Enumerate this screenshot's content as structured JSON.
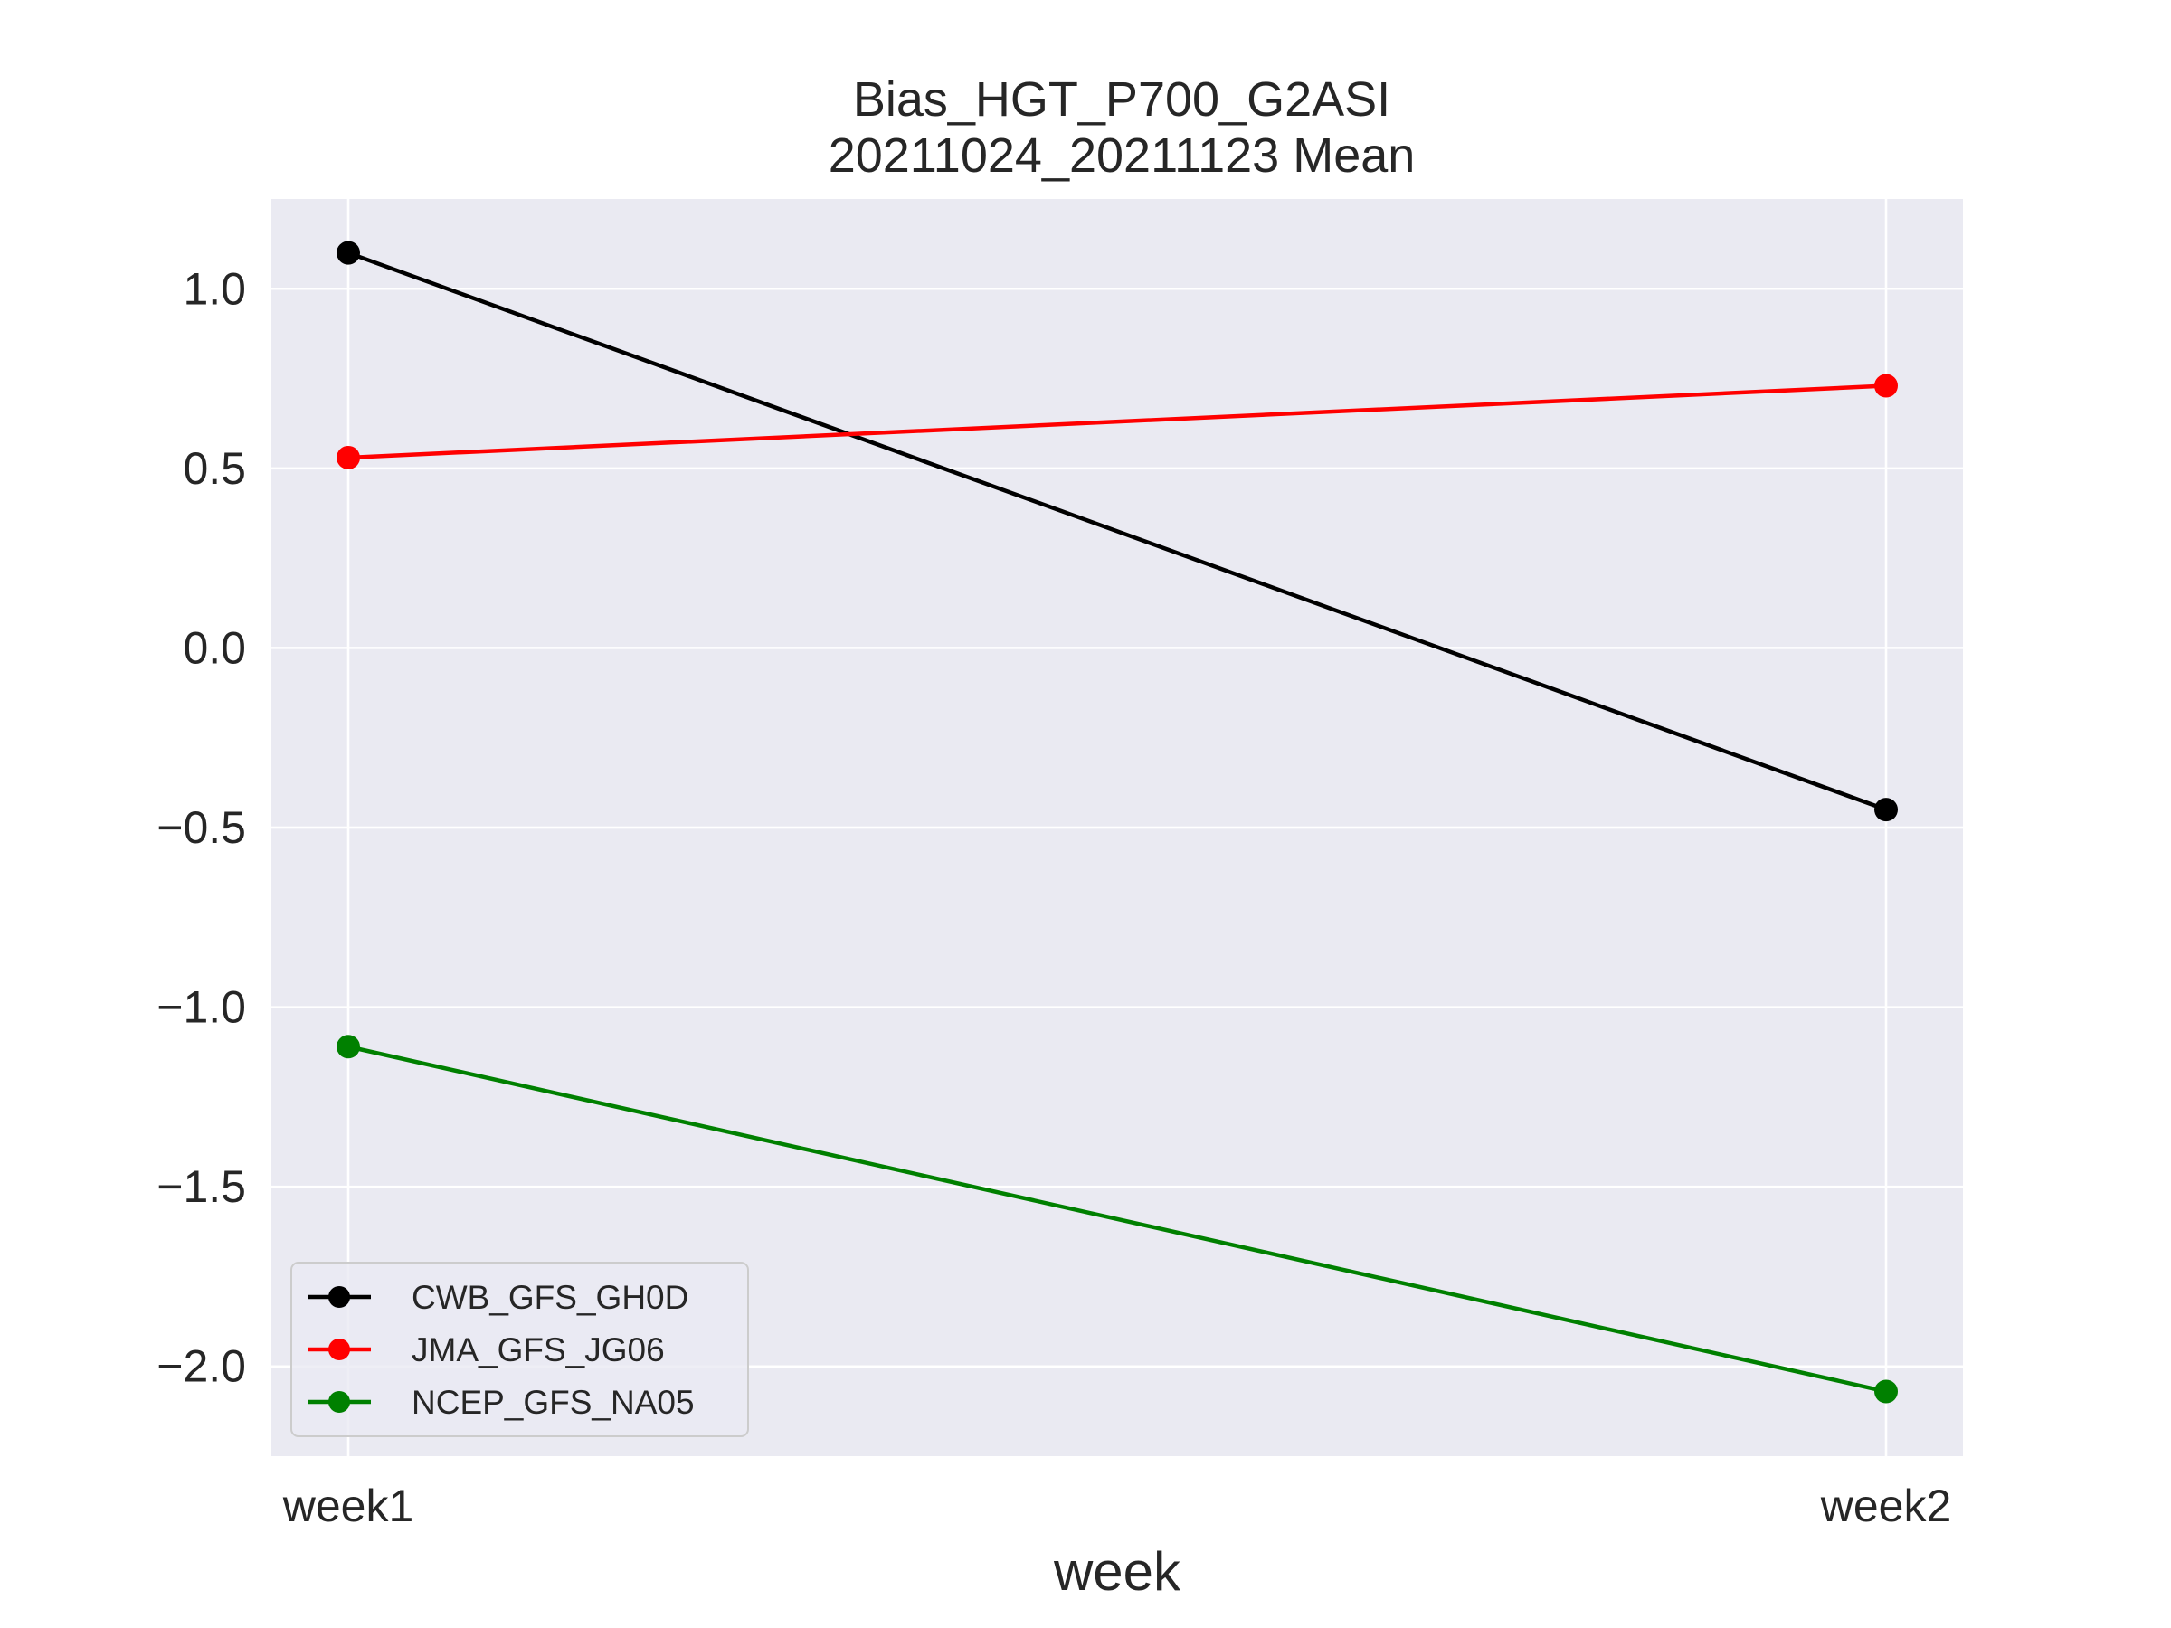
{
  "chart_data": {
    "type": "line",
    "title": "Bias_HGT_P700_G2ASI",
    "subtitle": "20211024_20211123 Mean",
    "xlabel": "week",
    "ylabel": "",
    "categories": [
      "week1",
      "week2"
    ],
    "ylim": [
      -2.25,
      1.25
    ],
    "yticks": [
      1.0,
      0.5,
      0.0,
      -0.5,
      -1.0,
      -1.5,
      -2.0
    ],
    "ytick_labels": [
      "1.0",
      "0.5",
      "0.0",
      "−0.5",
      "−1.0",
      "−1.5",
      "−2.0"
    ],
    "grid": true,
    "legend_position": "lower-left",
    "series": [
      {
        "name": "CWB_GFS_GH0D",
        "color": "#000000",
        "values": [
          1.1,
          -0.45
        ]
      },
      {
        "name": "JMA_GFS_JG06",
        "color": "#ff0000",
        "values": [
          0.53,
          0.73
        ]
      },
      {
        "name": "NCEP_GFS_NA05",
        "color": "#008000",
        "values": [
          -1.11,
          -2.07
        ]
      }
    ]
  }
}
